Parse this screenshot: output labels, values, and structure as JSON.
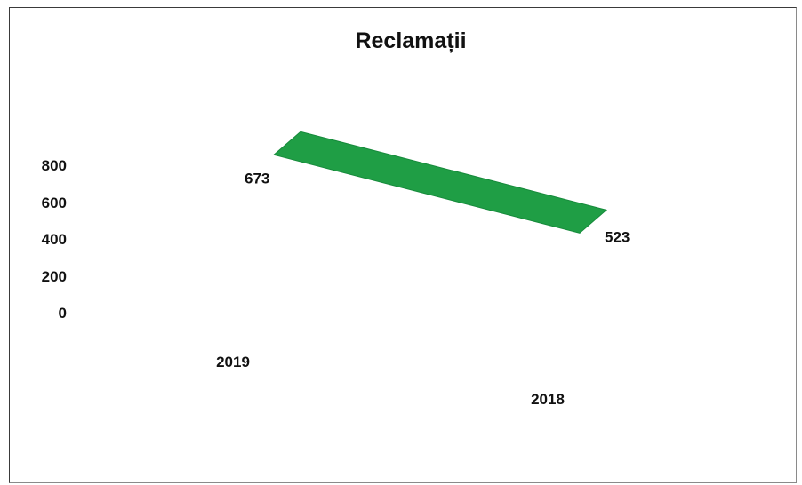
{
  "chart_data": {
    "type": "area",
    "title": "Reclamații",
    "categories": [
      "2019",
      "2018"
    ],
    "series": [
      {
        "values": [
          673,
          523
        ]
      }
    ],
    "data_labels": [
      "673",
      "523"
    ],
    "y_ticks": [
      "800",
      "600",
      "400",
      "200",
      "0"
    ],
    "ylim": [
      0,
      800
    ],
    "color": "#1f9e45",
    "gridlines": false,
    "legend": "none",
    "style": "3d"
  }
}
